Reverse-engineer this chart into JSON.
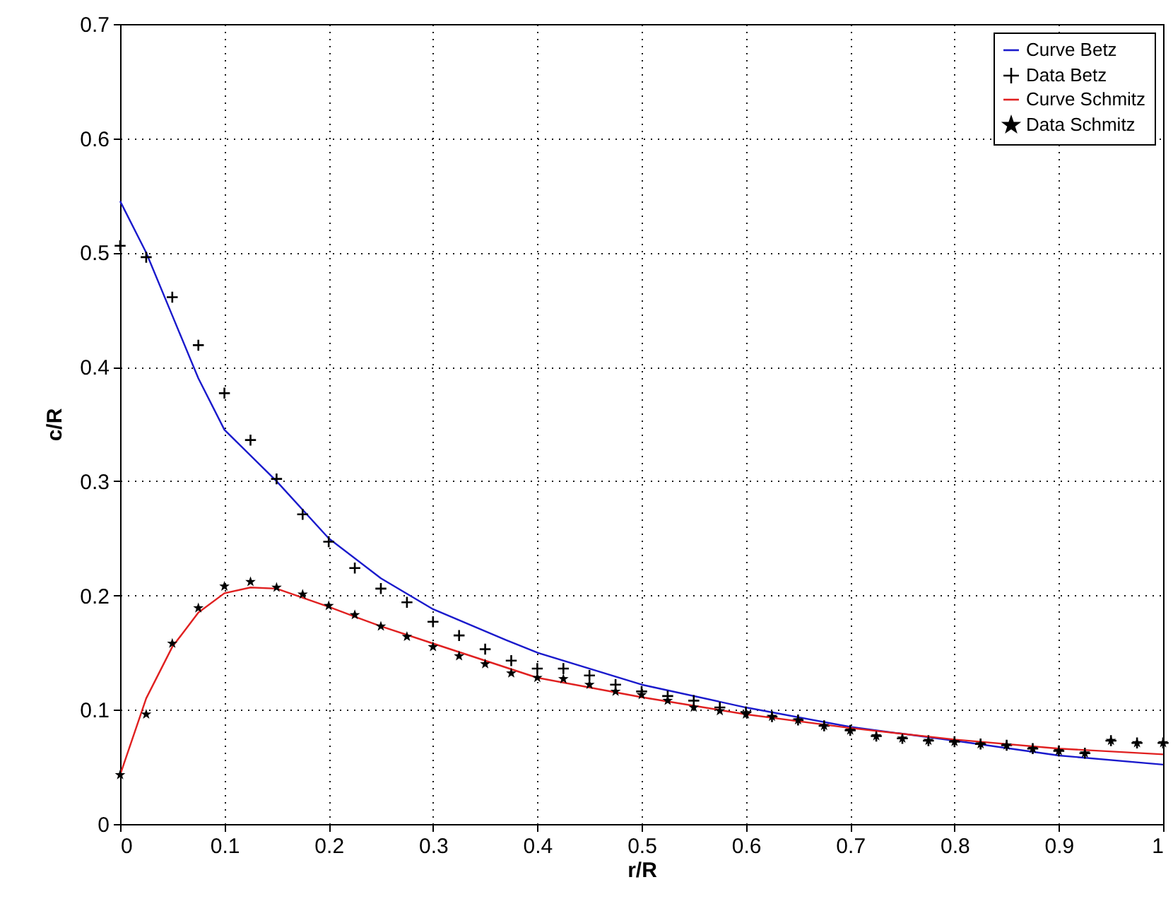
{
  "chart_data": {
    "type": "line",
    "xlabel": "r/R",
    "ylabel": "c/R",
    "xlim": [
      0,
      1
    ],
    "ylim": [
      0,
      0.7
    ],
    "xticks": [
      0,
      0.1,
      0.2,
      0.3,
      0.4,
      0.5,
      0.6,
      0.7,
      0.8,
      0.9,
      1
    ],
    "yticks": [
      0,
      0.1,
      0.2,
      0.3,
      0.4,
      0.5,
      0.6,
      0.7
    ],
    "grid": true,
    "legend": "top right",
    "series": [
      {
        "name": "Curve Betz",
        "type": "line",
        "marker": "none",
        "color": "#1a1acc",
        "x": [
          0,
          0.025,
          0.05,
          0.075,
          0.1,
          0.15,
          0.2,
          0.25,
          0.3,
          0.37,
          0.4,
          0.5,
          0.6,
          0.7,
          0.8,
          0.9,
          1
        ],
        "values": [
          0.545,
          0.5,
          0.445,
          0.39,
          0.345,
          0.3,
          0.25,
          0.215,
          0.188,
          0.161,
          0.15,
          0.122,
          0.102,
          0.085,
          0.073,
          0.06,
          0.052
        ]
      },
      {
        "name": "Data Betz",
        "type": "scatter",
        "marker": "cross",
        "color": "#000000",
        "x": [
          0,
          0.025,
          0.05,
          0.075,
          0.1,
          0.125,
          0.15,
          0.175,
          0.2,
          0.225,
          0.25,
          0.275,
          0.3,
          0.325,
          0.35,
          0.375,
          0.4,
          0.425,
          0.45,
          0.475,
          0.5,
          0.525,
          0.55,
          0.575,
          0.6,
          0.625,
          0.65,
          0.675,
          0.7,
          0.725,
          0.75,
          0.775,
          0.8,
          0.825,
          0.85,
          0.875,
          0.9,
          0.925,
          0.95,
          0.975,
          1
        ],
        "values": [
          0.506,
          0.496,
          0.461,
          0.419,
          0.377,
          0.336,
          0.302,
          0.271,
          0.247,
          0.224,
          0.206,
          0.194,
          0.177,
          0.165,
          0.153,
          0.143,
          0.136,
          0.136,
          0.13,
          0.122,
          0.116,
          0.112,
          0.108,
          0.102,
          0.098,
          0.094,
          0.091,
          0.086,
          0.082,
          0.077,
          0.075,
          0.073,
          0.072,
          0.07,
          0.069,
          0.066,
          0.064,
          0.062,
          0.073,
          0.071,
          0.071
        ]
      },
      {
        "name": "Curve Schmitz",
        "type": "line",
        "marker": "none",
        "color": "#e02020",
        "x": [
          0,
          0.025,
          0.05,
          0.075,
          0.1,
          0.125,
          0.15,
          0.2,
          0.25,
          0.3,
          0.4,
          0.5,
          0.6,
          0.7,
          0.8,
          0.9,
          1
        ],
        "values": [
          0.043,
          0.11,
          0.155,
          0.185,
          0.202,
          0.207,
          0.206,
          0.19,
          0.173,
          0.158,
          0.128,
          0.111,
          0.096,
          0.084,
          0.074,
          0.066,
          0.061
        ]
      },
      {
        "name": "Data Schmitz",
        "type": "scatter",
        "marker": "star",
        "color": "#000000",
        "x": [
          0,
          0.025,
          0.05,
          0.075,
          0.1,
          0.125,
          0.15,
          0.175,
          0.2,
          0.225,
          0.25,
          0.275,
          0.3,
          0.325,
          0.35,
          0.375,
          0.4,
          0.425,
          0.45,
          0.475,
          0.5,
          0.525,
          0.55,
          0.575,
          0.6,
          0.625,
          0.65,
          0.675,
          0.7,
          0.725,
          0.75,
          0.775,
          0.8,
          0.825,
          0.85,
          0.875,
          0.9,
          0.925,
          0.95,
          0.975,
          1
        ],
        "values": [
          0.043,
          0.096,
          0.158,
          0.189,
          0.208,
          0.212,
          0.207,
          0.201,
          0.191,
          0.183,
          0.173,
          0.164,
          0.155,
          0.147,
          0.14,
          0.132,
          0.128,
          0.127,
          0.122,
          0.116,
          0.113,
          0.108,
          0.102,
          0.099,
          0.096,
          0.094,
          0.091,
          0.086,
          0.082,
          0.077,
          0.075,
          0.073,
          0.072,
          0.07,
          0.069,
          0.066,
          0.064,
          0.062,
          0.073,
          0.071,
          0.071
        ]
      }
    ]
  }
}
